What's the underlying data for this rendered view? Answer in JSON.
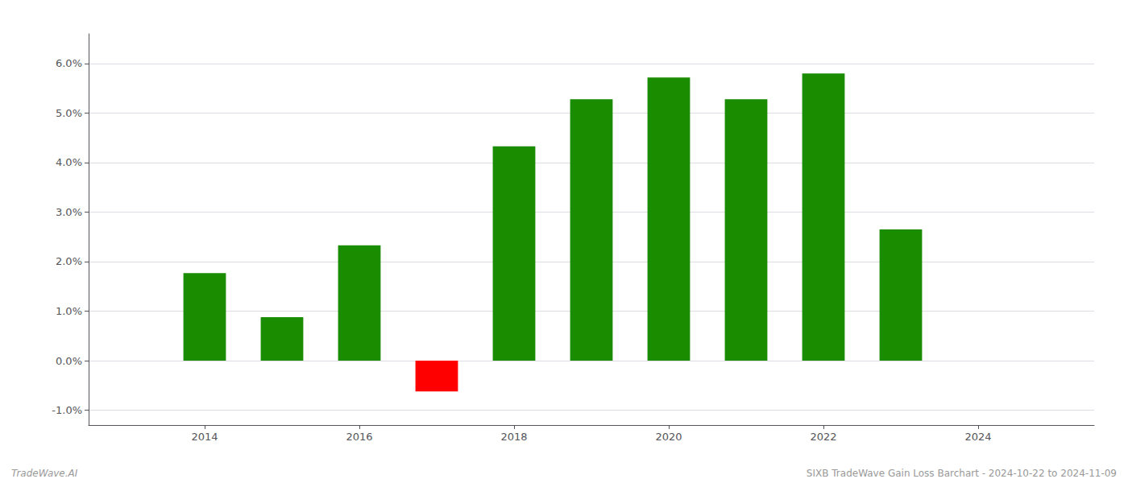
{
  "chart_data": {
    "type": "bar",
    "x": [
      2014,
      2015,
      2016,
      2017,
      2018,
      2019,
      2020,
      2021,
      2022,
      2023
    ],
    "values": [
      0.0177,
      0.0088,
      0.0233,
      -0.0062,
      0.0433,
      0.0528,
      0.0572,
      0.0528,
      0.058,
      0.0265
    ],
    "colors": [
      "#1a8c00",
      "#1a8c00",
      "#1a8c00",
      "#ff0000",
      "#1a8c00",
      "#1a8c00",
      "#1a8c00",
      "#1a8c00",
      "#1a8c00",
      "#1a8c00"
    ],
    "xlim": [
      2012.5,
      2025.5
    ],
    "xticks": [
      2014,
      2016,
      2018,
      2020,
      2022,
      2024
    ],
    "ylim": [
      -0.013,
      0.066
    ],
    "yticks": [
      {
        "value": -0.01,
        "label": "-1.0%"
      },
      {
        "value": 0.0,
        "label": "0.0%"
      },
      {
        "value": 0.01,
        "label": "1.0%"
      },
      {
        "value": 0.02,
        "label": "2.0%"
      },
      {
        "value": 0.03,
        "label": "3.0%"
      },
      {
        "value": 0.04,
        "label": "4.0%"
      },
      {
        "value": 0.05,
        "label": "5.0%"
      },
      {
        "value": 0.06,
        "label": "6.0%"
      }
    ],
    "grid": true,
    "annotations": [
      "TradeWave.AI",
      "SIXB TradeWave Gain Loss Barchart - 2024-10-22 to 2024-11-09"
    ]
  }
}
